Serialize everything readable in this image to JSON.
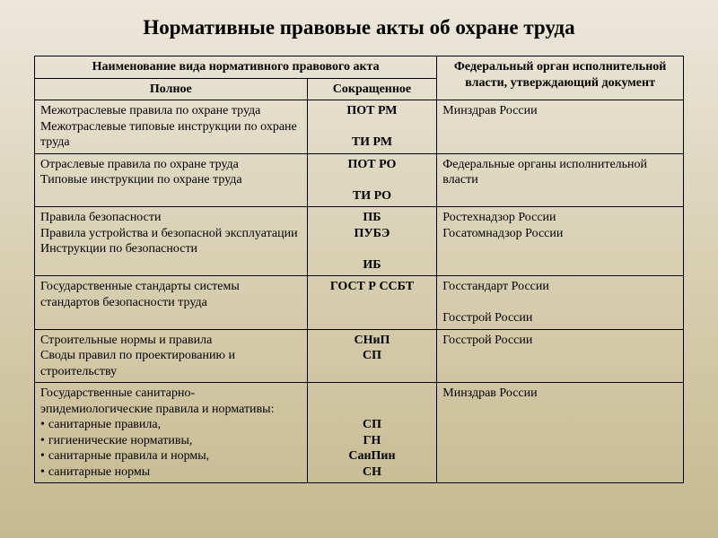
{
  "title": "Нормативные правовые акты об охране труда",
  "header": {
    "name_group": "Наименование вида нормативного  правового акта",
    "full": "Полное",
    "short": "Сокращенное",
    "authority": "Федеральный орган исполнительной власти, утверждающий документ"
  },
  "rows": [
    {
      "full": [
        "Межотраслевые правила по охране труда",
        "Межотраслевые типовые инструкции по охране труда"
      ],
      "short": [
        "ПОТ РМ",
        "",
        "ТИ РМ"
      ],
      "authority": [
        "Минздрав России"
      ]
    },
    {
      "full": [
        "Отраслевые правила по охране труда",
        "Типовые инструкции по охране труда"
      ],
      "short": [
        "ПОТ РО",
        "",
        "ТИ РО"
      ],
      "authority": [
        "Федеральные органы исполнительной власти"
      ]
    },
    {
      "full": [
        "Правила безопасности",
        "Правила устройства и безопасной эксплуатации",
        "Инструкции по безопасности"
      ],
      "short": [
        "ПБ",
        "ПУБЭ",
        "",
        "ИБ"
      ],
      "authority": [
        "Ростехнадзор России",
        "Госатомнадзор России"
      ]
    },
    {
      "full": [
        "Государственные стандарты системы стандартов безопасности труда"
      ],
      "short": [
        "ГОСТ Р ССБТ"
      ],
      "authority": [
        "Госстандарт России",
        "",
        "Госстрой России"
      ]
    },
    {
      "full": [
        "Строительные нормы и правила",
        "Своды правил по проектированию и строительству"
      ],
      "short": [
        "СНиП",
        "СП"
      ],
      "authority": [
        "Госстрой России"
      ]
    },
    {
      "full_plain": [
        "Государственные санитарно-эпидемиологические правила и нормативы:"
      ],
      "full_bullets": [
        "санитарные правила,",
        "гигиенические нормативы,",
        "санитарные правила и нормы,",
        "санитарные нормы"
      ],
      "short": [
        "",
        "",
        "СП",
        "ГН",
        "СанПин",
        "СН"
      ],
      "authority": [
        "Минздрав России"
      ]
    }
  ]
}
